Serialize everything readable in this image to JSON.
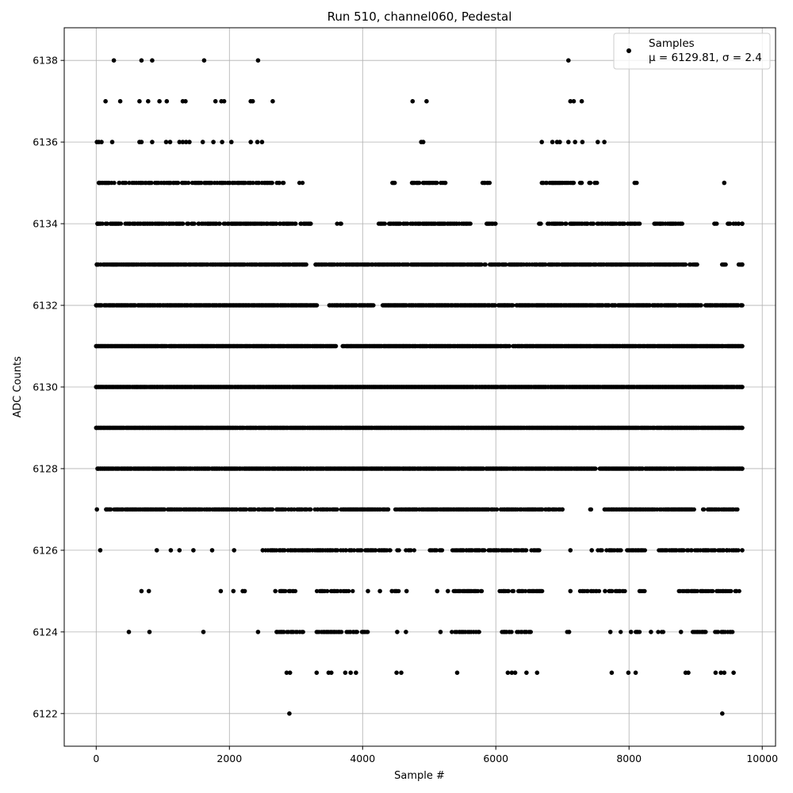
{
  "chart_data": {
    "type": "scatter",
    "title": "Run 510, channel060, Pedestal",
    "xlabel": "Sample #",
    "ylabel": "ADC Counts",
    "xlim": [
      -480,
      10200
    ],
    "ylim": [
      6121.2,
      6138.8
    ],
    "x_ticks": [
      0,
      2000,
      4000,
      6000,
      8000,
      10000
    ],
    "y_ticks": [
      6122,
      6124,
      6126,
      6128,
      6130,
      6132,
      6134,
      6136,
      6138
    ],
    "grid": true,
    "legend_position": "top-right",
    "marker_color": "#000000",
    "series": [
      {
        "name": "Samples",
        "stats_label": "μ = 6129.81, σ = 2.4",
        "mean": 6129.81,
        "std": 2.4,
        "n_samples": 9728,
        "points": [
          {
            "x": 265,
            "y": 6138
          },
          {
            "x": 680,
            "y": 6138
          },
          {
            "x": 840,
            "y": 6138
          },
          {
            "x": 1620,
            "y": 6138
          },
          {
            "x": 2430,
            "y": 6138
          },
          {
            "x": 7090,
            "y": 6138
          },
          {
            "x": 140,
            "y": 6137
          },
          {
            "x": 360,
            "y": 6137
          },
          {
            "x": 650,
            "y": 6137
          },
          {
            "x": 780,
            "y": 6137
          },
          {
            "x": 950,
            "y": 6137
          },
          {
            "x": 1060,
            "y": 6137
          },
          {
            "x": 1300,
            "y": 6137
          },
          {
            "x": 1340,
            "y": 6137
          },
          {
            "x": 1790,
            "y": 6137
          },
          {
            "x": 1880,
            "y": 6137
          },
          {
            "x": 1920,
            "y": 6137
          },
          {
            "x": 2320,
            "y": 6137
          },
          {
            "x": 2350,
            "y": 6137
          },
          {
            "x": 2650,
            "y": 6137
          },
          {
            "x": 4750,
            "y": 6137
          },
          {
            "x": 4960,
            "y": 6137
          },
          {
            "x": 7120,
            "y": 6137
          },
          {
            "x": 7170,
            "y": 6137
          },
          {
            "x": 7290,
            "y": 6137
          },
          {
            "x": 10,
            "y": 6136
          },
          {
            "x": 40,
            "y": 6136
          },
          {
            "x": 80,
            "y": 6136
          },
          {
            "x": 240,
            "y": 6136
          },
          {
            "x": 650,
            "y": 6136
          },
          {
            "x": 680,
            "y": 6136
          },
          {
            "x": 840,
            "y": 6136
          },
          {
            "x": 1050,
            "y": 6136
          },
          {
            "x": 1110,
            "y": 6136
          },
          {
            "x": 1250,
            "y": 6136
          },
          {
            "x": 1300,
            "y": 6136
          },
          {
            "x": 1350,
            "y": 6136
          },
          {
            "x": 1400,
            "y": 6136
          },
          {
            "x": 1600,
            "y": 6136
          },
          {
            "x": 1760,
            "y": 6136
          },
          {
            "x": 1890,
            "y": 6136
          },
          {
            "x": 2030,
            "y": 6136
          },
          {
            "x": 2320,
            "y": 6136
          },
          {
            "x": 2420,
            "y": 6136
          },
          {
            "x": 2490,
            "y": 6136
          },
          {
            "x": 4880,
            "y": 6136
          },
          {
            "x": 4910,
            "y": 6136
          },
          {
            "x": 6690,
            "y": 6136
          },
          {
            "x": 6850,
            "y": 6136
          },
          {
            "x": 6920,
            "y": 6136
          },
          {
            "x": 6960,
            "y": 6136
          },
          {
            "x": 7090,
            "y": 6136
          },
          {
            "x": 7190,
            "y": 6136
          },
          {
            "x": 7300,
            "y": 6136
          },
          {
            "x": 7530,
            "y": 6136
          },
          {
            "x": 7630,
            "y": 6136
          },
          {
            "x": 9400,
            "y": 6122
          },
          {
            "x": 2900,
            "y": 6122
          },
          {
            "x": 2860,
            "y": 6123
          },
          {
            "x": 2910,
            "y": 6123
          },
          {
            "x": 3310,
            "y": 6123
          },
          {
            "x": 3490,
            "y": 6123
          },
          {
            "x": 3530,
            "y": 6123
          },
          {
            "x": 3740,
            "y": 6123
          },
          {
            "x": 3820,
            "y": 6123
          },
          {
            "x": 3900,
            "y": 6123
          },
          {
            "x": 4510,
            "y": 6123
          },
          {
            "x": 4580,
            "y": 6123
          },
          {
            "x": 5420,
            "y": 6123
          },
          {
            "x": 6180,
            "y": 6123
          },
          {
            "x": 6240,
            "y": 6123
          },
          {
            "x": 6290,
            "y": 6123
          },
          {
            "x": 6460,
            "y": 6123
          },
          {
            "x": 6620,
            "y": 6123
          },
          {
            "x": 7740,
            "y": 6123
          },
          {
            "x": 7990,
            "y": 6123
          },
          {
            "x": 8100,
            "y": 6123
          },
          {
            "x": 8850,
            "y": 6123
          },
          {
            "x": 8890,
            "y": 6123
          },
          {
            "x": 9300,
            "y": 6123
          },
          {
            "x": 9380,
            "y": 6123
          },
          {
            "x": 9430,
            "y": 6123
          },
          {
            "x": 9570,
            "y": 6123
          },
          {
            "x": 490,
            "y": 6124
          },
          {
            "x": 800,
            "y": 6124
          },
          {
            "x": 1610,
            "y": 6124
          },
          {
            "x": 2430,
            "y": 6124
          },
          {
            "x": 2710,
            "y": 6124
          },
          {
            "x": 4520,
            "y": 6124
          },
          {
            "x": 4650,
            "y": 6124
          },
          {
            "x": 5170,
            "y": 6124
          },
          {
            "x": 7100,
            "y": 6124
          },
          {
            "x": 7720,
            "y": 6124
          },
          {
            "x": 8030,
            "y": 6124
          },
          {
            "x": 8330,
            "y": 6124
          },
          {
            "x": 8780,
            "y": 6124
          },
          {
            "x": 680,
            "y": 6125
          },
          {
            "x": 790,
            "y": 6125
          },
          {
            "x": 1870,
            "y": 6125
          },
          {
            "x": 2060,
            "y": 6125
          },
          {
            "x": 2200,
            "y": 6125
          },
          {
            "x": 2230,
            "y": 6125
          },
          {
            "x": 2690,
            "y": 6125
          },
          {
            "x": 4080,
            "y": 6125
          },
          {
            "x": 4260,
            "y": 6125
          },
          {
            "x": 4440,
            "y": 6125
          },
          {
            "x": 4660,
            "y": 6125
          },
          {
            "x": 5120,
            "y": 6125
          },
          {
            "x": 5280,
            "y": 6125
          },
          {
            "x": 7120,
            "y": 6125
          },
          {
            "x": 7640,
            "y": 6125
          },
          {
            "x": 60,
            "y": 6126
          },
          {
            "x": 910,
            "y": 6126
          },
          {
            "x": 1120,
            "y": 6126
          },
          {
            "x": 1250,
            "y": 6126
          },
          {
            "x": 1460,
            "y": 6126
          },
          {
            "x": 1740,
            "y": 6126
          },
          {
            "x": 2070,
            "y": 6126
          },
          {
            "x": 2500,
            "y": 6126
          },
          {
            "x": 7120,
            "y": 6126
          },
          {
            "x": 7440,
            "y": 6126
          },
          {
            "x": 9470,
            "y": 6126
          },
          {
            "x": 9700,
            "y": 6126
          },
          {
            "x": 10,
            "y": 6127
          },
          {
            "x": 150,
            "y": 6127
          },
          {
            "x": 6790,
            "y": 6127
          },
          {
            "x": 7000,
            "y": 6127
          },
          {
            "x": 20,
            "y": 6128
          },
          {
            "x": 9700,
            "y": 6128
          },
          {
            "x": 0,
            "y": 6129
          },
          {
            "x": 9700,
            "y": 6129
          },
          {
            "x": 0,
            "y": 6130
          },
          {
            "x": 9700,
            "y": 6130
          },
          {
            "x": 0,
            "y": 6131
          },
          {
            "x": 9700,
            "y": 6131
          },
          {
            "x": 0,
            "y": 6132
          },
          {
            "x": 9700,
            "y": 6132
          },
          {
            "x": 10,
            "y": 6133
          },
          {
            "x": 9700,
            "y": 6133
          },
          {
            "x": 20,
            "y": 6134
          },
          {
            "x": 9700,
            "y": 6134
          },
          {
            "x": 40,
            "y": 6135
          },
          {
            "x": 9430,
            "y": 6135
          }
        ],
        "bands": [
          {
            "y": 6135,
            "segments": [
              [
                40,
                2820
              ],
              [
                3050,
                3180
              ],
              [
                4420,
                4500
              ],
              [
                4740,
                5300
              ],
              [
                5800,
                5920
              ],
              [
                6690,
                7300
              ],
              [
                7400,
                7560
              ],
              [
                8080,
                8130
              ]
            ],
            "density": 0.55
          },
          {
            "y": 6134,
            "segments": [
              [
                20,
                3240
              ],
              [
                3620,
                3680
              ],
              [
                4240,
                4880
              ],
              [
                4900,
                5620
              ],
              [
                5850,
                6000
              ],
              [
                6650,
                6680
              ],
              [
                6780,
                8180
              ],
              [
                8380,
                8800
              ],
              [
                9280,
                9330
              ],
              [
                9470,
                9700
              ]
            ],
            "density": 0.6
          },
          {
            "y": 6133,
            "segments": [
              [
                10,
                3200
              ],
              [
                3290,
                4500
              ],
              [
                4500,
                5850
              ],
              [
                5900,
                6420
              ],
              [
                6460,
                8850
              ],
              [
                8900,
                9020
              ],
              [
                9400,
                9450
              ],
              [
                9620,
                9700
              ]
            ],
            "density": 0.75
          },
          {
            "y": 6132,
            "segments": [
              [
                0,
                3320
              ],
              [
                3500,
                4170
              ],
              [
                4300,
                6260
              ],
              [
                6310,
                9090
              ],
              [
                9150,
                9700
              ]
            ],
            "density": 0.88
          },
          {
            "y": 6131,
            "segments": [
              [
                0,
                3600
              ],
              [
                3700,
                6210
              ],
              [
                6260,
                9700
              ]
            ],
            "density": 0.95
          },
          {
            "y": 6130,
            "segments": [
              [
                0,
                9700
              ]
            ],
            "density": 0.97
          },
          {
            "y": 6129,
            "segments": [
              [
                0,
                9700
              ]
            ],
            "density": 0.97
          },
          {
            "y": 6128,
            "segments": [
              [
                20,
                7500
              ],
              [
                7560,
                9700
              ]
            ],
            "density": 0.93
          },
          {
            "y": 6127,
            "segments": [
              [
                150,
                4400
              ],
              [
                4490,
                6780
              ],
              [
                6800,
                6990
              ],
              [
                7420,
                7440
              ],
              [
                7620,
                8490
              ],
              [
                8520,
                9000
              ],
              [
                9100,
                9640
              ]
            ],
            "density": 0.7
          },
          {
            "y": 6126,
            "segments": [
              [
                2530,
                4420
              ],
              [
                4520,
                4780
              ],
              [
                5000,
                5200
              ],
              [
                5350,
                6500
              ],
              [
                6520,
                6660
              ],
              [
                7520,
                7880
              ],
              [
                7960,
                8260
              ],
              [
                8450,
                9660
              ]
            ],
            "density": 0.55
          },
          {
            "y": 6125,
            "segments": [
              [
                2760,
                3000
              ],
              [
                3300,
                3860
              ],
              [
                4480,
                4560
              ],
              [
                5370,
                5800
              ],
              [
                6060,
                6700
              ],
              [
                7250,
                7560
              ],
              [
                7700,
                7950
              ],
              [
                8160,
                8260
              ],
              [
                8740,
                9660
              ]
            ],
            "density": 0.55
          },
          {
            "y": 6124,
            "segments": [
              [
                2720,
                3120
              ],
              [
                3310,
                3700
              ],
              [
                3760,
                3920
              ],
              [
                3990,
                4080
              ],
              [
                5330,
                5760
              ],
              [
                6090,
                6540
              ],
              [
                7070,
                7100
              ],
              [
                7860,
                7880
              ],
              [
                8100,
                8160
              ],
              [
                8440,
                8520
              ],
              [
                8960,
                9160
              ],
              [
                9290,
                9620
              ]
            ],
            "density": 0.5
          }
        ]
      }
    ]
  }
}
